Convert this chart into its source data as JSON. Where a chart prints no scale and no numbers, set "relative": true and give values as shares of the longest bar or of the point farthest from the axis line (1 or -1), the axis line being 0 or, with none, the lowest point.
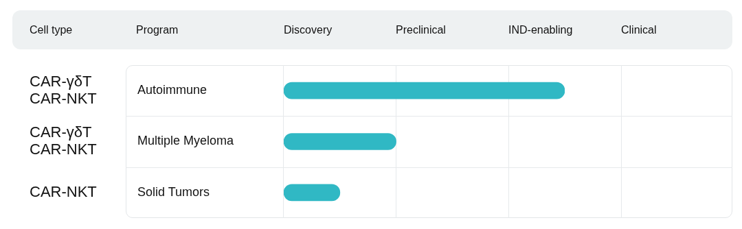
{
  "chart_data": {
    "type": "bar",
    "orientation": "horizontal",
    "relative": true,
    "ylabel": "Program",
    "categories": [
      "Autoimmune",
      "Multiple Myeloma",
      "Solid Tumors"
    ],
    "values": [
      1,
      0.4,
      0.2
    ],
    "color": "#30b8c4",
    "legend": false,
    "annotations": [
      "Cell type",
      "Discovery",
      "Preclinical",
      "IND-enabling",
      "Clinical",
      "CAR-γδT\nCAR-NKT",
      "CAR-γδT\nCAR-NKT",
      "CAR-NKT"
    ]
  }
}
